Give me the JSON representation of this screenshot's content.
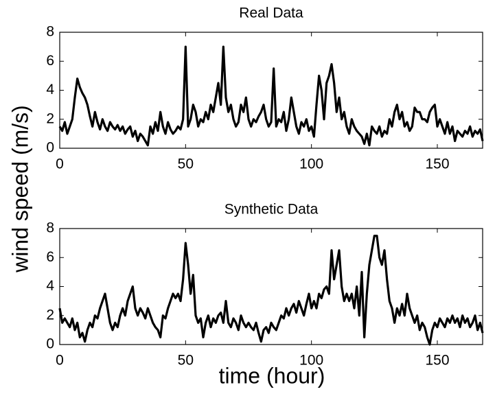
{
  "ylabel": "wind speed (m/s)",
  "xlabel": "time (hour)",
  "chart_data": [
    {
      "type": "line",
      "title": "Real Data",
      "x": [
        0,
        1,
        2,
        3,
        4,
        5,
        6,
        7,
        8,
        9,
        10,
        11,
        12,
        13,
        14,
        15,
        16,
        17,
        18,
        19,
        20,
        21,
        22,
        23,
        24,
        25,
        26,
        27,
        28,
        29,
        30,
        31,
        32,
        33,
        34,
        35,
        36,
        37,
        38,
        39,
        40,
        41,
        42,
        43,
        44,
        45,
        46,
        47,
        48,
        49,
        50,
        51,
        52,
        53,
        54,
        55,
        56,
        57,
        58,
        59,
        60,
        61,
        62,
        63,
        64,
        65,
        66,
        67,
        68,
        69,
        70,
        71,
        72,
        73,
        74,
        75,
        76,
        77,
        78,
        79,
        80,
        81,
        82,
        83,
        84,
        85,
        86,
        87,
        88,
        89,
        90,
        91,
        92,
        93,
        94,
        95,
        96,
        97,
        98,
        99,
        100,
        101,
        102,
        103,
        104,
        105,
        106,
        107,
        108,
        109,
        110,
        111,
        112,
        113,
        114,
        115,
        116,
        117,
        118,
        119,
        120,
        121,
        122,
        123,
        124,
        125,
        126,
        127,
        128,
        129,
        130,
        131,
        132,
        133,
        134,
        135,
        136,
        137,
        138,
        139,
        140,
        141,
        142,
        143,
        144,
        145,
        146,
        147,
        148,
        149,
        150,
        151,
        152,
        153,
        154,
        155,
        156,
        157,
        158,
        159,
        160,
        161,
        162,
        163,
        164,
        165,
        166,
        167,
        168
      ],
      "series": [
        {
          "color": "#000000",
          "values": [
            1.5,
            1.2,
            1.8,
            1.0,
            1.5,
            2.0,
            3.5,
            4.8,
            4.2,
            3.8,
            3.5,
            3.0,
            2.2,
            1.5,
            2.5,
            1.8,
            1.3,
            2.0,
            1.5,
            1.2,
            1.8,
            1.5,
            1.3,
            1.6,
            1.2,
            1.5,
            1.0,
            1.3,
            1.5,
            0.8,
            1.2,
            0.5,
            1.0,
            0.8,
            0.5,
            0.2,
            1.5,
            1.0,
            1.8,
            1.2,
            2.5,
            1.5,
            1.0,
            1.8,
            1.3,
            1.0,
            1.2,
            1.5,
            1.3,
            2.0,
            7.0,
            1.5,
            2.0,
            3.0,
            2.5,
            1.5,
            2.0,
            1.8,
            2.5,
            2.0,
            3.0,
            2.5,
            3.5,
            4.5,
            3.0,
            7.0,
            3.5,
            2.5,
            3.0,
            2.0,
            1.5,
            1.8,
            3.0,
            2.5,
            3.5,
            2.0,
            1.5,
            2.0,
            1.8,
            2.2,
            2.5,
            3.0,
            2.0,
            1.5,
            1.8,
            5.5,
            1.5,
            2.0,
            1.8,
            2.5,
            1.2,
            2.0,
            3.5,
            2.5,
            1.5,
            1.0,
            1.8,
            1.5,
            2.0,
            1.2,
            1.5,
            0.8,
            3.0,
            5.0,
            4.0,
            2.0,
            4.5,
            5.0,
            5.8,
            4.5,
            2.5,
            3.5,
            2.0,
            2.5,
            1.5,
            1.0,
            2.0,
            1.5,
            1.2,
            1.0,
            0.8,
            0.3,
            1.0,
            0.2,
            1.5,
            1.2,
            1.0,
            1.5,
            0.8,
            1.2,
            1.0,
            2.0,
            1.5,
            2.5,
            3.0,
            2.0,
            2.5,
            1.5,
            1.8,
            1.2,
            1.5,
            2.8,
            2.5,
            2.5,
            2.0,
            2.0,
            1.8,
            2.5,
            2.8,
            3.0,
            1.5,
            2.0,
            1.5,
            1.0,
            1.8,
            1.0,
            1.5,
            0.5,
            1.2,
            1.0,
            0.8,
            1.2,
            1.0,
            1.5,
            0.8,
            1.2,
            1.0,
            1.3,
            0.5
          ]
        }
      ],
      "xlim": [
        0,
        168
      ],
      "xticks": [
        0,
        50,
        100,
        150
      ],
      "ylim": [
        0,
        8
      ],
      "yticks": [
        0,
        2,
        4,
        6,
        8
      ]
    },
    {
      "type": "line",
      "title": "Synthetic Data",
      "x": [
        0,
        1,
        2,
        3,
        4,
        5,
        6,
        7,
        8,
        9,
        10,
        11,
        12,
        13,
        14,
        15,
        16,
        17,
        18,
        19,
        20,
        21,
        22,
        23,
        24,
        25,
        26,
        27,
        28,
        29,
        30,
        31,
        32,
        33,
        34,
        35,
        36,
        37,
        38,
        39,
        40,
        41,
        42,
        43,
        44,
        45,
        46,
        47,
        48,
        49,
        50,
        51,
        52,
        53,
        54,
        55,
        56,
        57,
        58,
        59,
        60,
        61,
        62,
        63,
        64,
        65,
        66,
        67,
        68,
        69,
        70,
        71,
        72,
        73,
        74,
        75,
        76,
        77,
        78,
        79,
        80,
        81,
        82,
        83,
        84,
        85,
        86,
        87,
        88,
        89,
        90,
        91,
        92,
        93,
        94,
        95,
        96,
        97,
        98,
        99,
        100,
        101,
        102,
        103,
        104,
        105,
        106,
        107,
        108,
        109,
        110,
        111,
        112,
        113,
        114,
        115,
        116,
        117,
        118,
        119,
        120,
        121,
        122,
        123,
        124,
        125,
        126,
        127,
        128,
        129,
        130,
        131,
        132,
        133,
        134,
        135,
        136,
        137,
        138,
        139,
        140,
        141,
        142,
        143,
        144,
        145,
        146,
        147,
        148,
        149,
        150,
        151,
        152,
        153,
        154,
        155,
        156,
        157,
        158,
        159,
        160,
        161,
        162,
        163,
        164,
        165,
        166,
        167,
        168
      ],
      "series": [
        {
          "color": "#000000",
          "values": [
            2.5,
            1.5,
            1.8,
            1.5,
            1.2,
            1.8,
            1.0,
            1.5,
            0.5,
            0.8,
            0.2,
            1.0,
            1.5,
            1.2,
            2.0,
            1.8,
            2.5,
            3.0,
            3.5,
            2.5,
            1.5,
            1.0,
            1.5,
            1.2,
            2.0,
            2.5,
            2.0,
            3.0,
            3.5,
            4.0,
            2.5,
            2.0,
            2.5,
            2.2,
            1.8,
            2.5,
            2.0,
            1.5,
            1.2,
            1.0,
            0.5,
            2.0,
            1.8,
            2.5,
            3.0,
            3.5,
            3.2,
            3.5,
            3.0,
            4.5,
            7.0,
            5.5,
            3.5,
            4.8,
            2.0,
            1.5,
            1.8,
            0.5,
            1.5,
            2.0,
            1.2,
            1.8,
            1.5,
            2.0,
            2.2,
            1.5,
            3.0,
            1.5,
            1.2,
            1.8,
            1.5,
            1.0,
            2.0,
            1.5,
            1.2,
            1.5,
            1.2,
            1.0,
            1.5,
            0.8,
            0.2,
            1.0,
            1.2,
            0.8,
            1.5,
            1.2,
            1.0,
            1.5,
            2.0,
            1.8,
            2.5,
            2.0,
            2.5,
            2.8,
            2.2,
            3.0,
            2.5,
            2.0,
            2.8,
            3.5,
            2.5,
            3.0,
            2.5,
            3.5,
            3.2,
            3.8,
            4.0,
            3.5,
            6.5,
            4.5,
            5.5,
            6.5,
            4.0,
            3.0,
            3.5,
            3.0,
            3.5,
            2.5,
            4.0,
            2.0,
            5.0,
            0.5,
            3.5,
            5.5,
            6.5,
            7.5,
            7.5,
            6.0,
            5.5,
            6.5,
            4.5,
            3.0,
            2.5,
            1.5,
            2.5,
            2.0,
            2.8,
            2.0,
            3.5,
            2.5,
            2.0,
            1.5,
            2.0,
            1.0,
            1.5,
            1.2,
            0.5,
            0.0,
            1.0,
            1.5,
            1.2,
            1.8,
            1.5,
            1.2,
            1.8,
            1.5,
            2.0,
            1.5,
            1.8,
            1.2,
            2.0,
            1.5,
            1.8,
            1.2,
            1.5,
            2.0,
            1.0,
            1.5,
            0.8
          ]
        }
      ],
      "xlim": [
        0,
        168
      ],
      "xticks": [
        0,
        50,
        100,
        150
      ],
      "ylim": [
        0,
        8
      ],
      "yticks": [
        0,
        2,
        4,
        6,
        8
      ]
    }
  ]
}
